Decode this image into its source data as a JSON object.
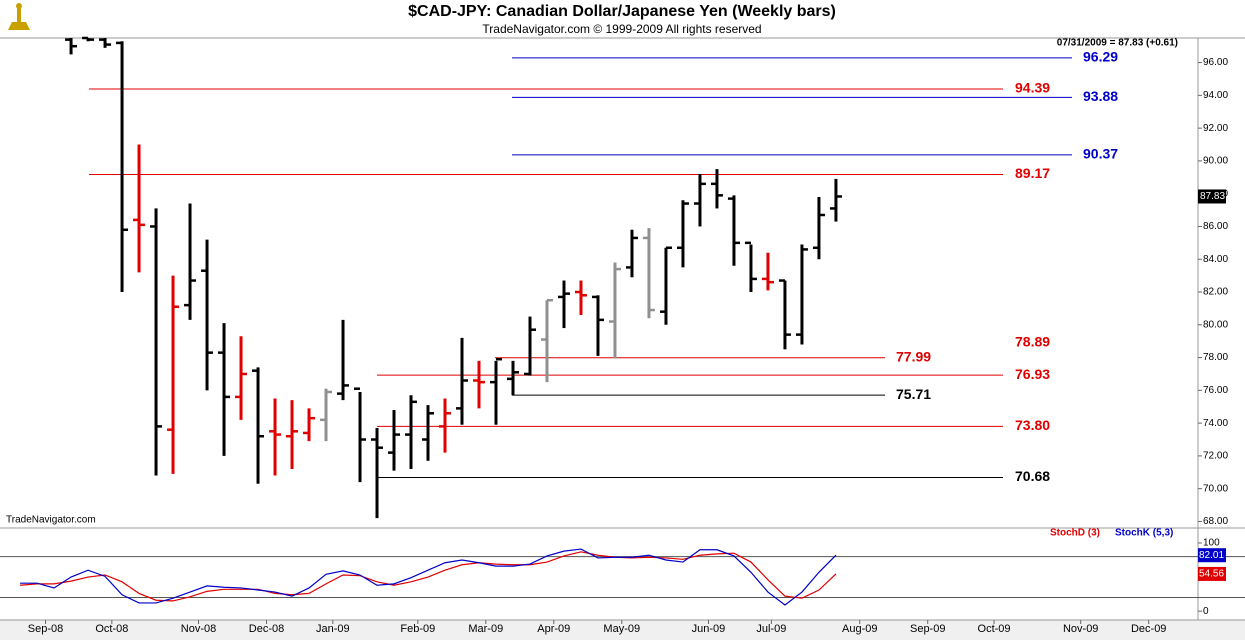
{
  "chart_data": [
    {
      "type": "ohlc",
      "title": "$CAD-JPY:  Canadian Dollar/Japanese Yen  (Weekly bars)",
      "subtitle": "TradeNavigator.com © 1999-2009 All rights reserved",
      "annotation": "07/31/2009 = 87.83 (+0.61)",
      "source": "TradeNavigator.com",
      "x": [
        0,
        1,
        2,
        3,
        4,
        5,
        6,
        7,
        8,
        9,
        10,
        11,
        12,
        13,
        14,
        15,
        16,
        17,
        18,
        19,
        20,
        21,
        22,
        23,
        24,
        25,
        26,
        27,
        28,
        29,
        30,
        31,
        32,
        33,
        34,
        35,
        36,
        37,
        38,
        39,
        40,
        41,
        42,
        43,
        44,
        45
      ],
      "open": [
        97.4,
        97.5,
        97.4,
        97.2,
        86.4,
        86.0,
        73.6,
        81.2,
        83.3,
        78.3,
        75.6,
        77.2,
        73.5,
        73.2,
        73.4,
        74.2,
        75.8,
        76.1,
        73.0,
        72.2,
        73.3,
        73.0,
        73.8,
        74.9,
        76.6,
        76.5,
        76.7,
        77.0,
        79.1,
        81.7,
        82.0,
        81.7,
        80.2,
        83.5,
        85.3,
        80.8,
        84.7,
        87.4,
        88.6,
        87.7,
        85.0,
        82.8,
        82.7,
        79.4,
        84.7,
        87.1
      ],
      "high": [
        97.5,
        97.5,
        97.5,
        97.3,
        91.0,
        87.1,
        83.0,
        87.4,
        85.2,
        80.1,
        79.3,
        77.4,
        75.5,
        75.4,
        74.9,
        76.1,
        80.3,
        75.9,
        73.7,
        74.8,
        75.7,
        75.1,
        75.5,
        79.2,
        77.8,
        77.8,
        77.8,
        80.5,
        81.5,
        82.7,
        82.7,
        81.8,
        83.8,
        85.8,
        85.9,
        84.7,
        87.6,
        89.2,
        89.5,
        87.9,
        84.9,
        84.4,
        82.7,
        84.9,
        87.8,
        88.9
      ],
      "low": [
        96.5,
        97.3,
        96.9,
        82.0,
        83.2,
        70.8,
        70.9,
        80.3,
        76.0,
        72.0,
        74.2,
        70.3,
        70.8,
        71.2,
        72.9,
        72.9,
        75.4,
        70.4,
        68.2,
        71.1,
        71.2,
        71.7,
        72.2,
        73.9,
        74.9,
        73.9,
        75.7,
        76.9,
        76.5,
        79.8,
        80.6,
        78.1,
        77.95,
        82.9,
        80.4,
        80.0,
        83.5,
        86.0,
        87.1,
        83.6,
        82.0,
        82.1,
        78.5,
        78.8,
        84.0,
        86.3
      ],
      "close": [
        97.0,
        97.4,
        97.1,
        85.8,
        86.1,
        73.8,
        81.1,
        82.7,
        78.3,
        75.6,
        77.0,
        73.2,
        73.3,
        73.5,
        74.3,
        75.9,
        76.3,
        73.0,
        72.5,
        73.3,
        75.3,
        74.6,
        74.6,
        76.6,
        76.5,
        77.9,
        77.1,
        79.7,
        81.5,
        81.9,
        81.8,
        80.3,
        83.4,
        85.3,
        80.9,
        84.7,
        87.4,
        88.6,
        87.9,
        85.0,
        82.8,
        82.6,
        79.4,
        84.6,
        86.7,
        87.83
      ],
      "colors": [
        "#000000",
        "#000000",
        "#000000",
        "#000000",
        "#e00000",
        "#000000",
        "#e00000",
        "#000000",
        "#000000",
        "#000000",
        "#e00000",
        "#000000",
        "#e00000",
        "#e00000",
        "#e00000",
        "#909090",
        "#000000",
        "#000000",
        "#000000",
        "#000000",
        "#000000",
        "#000000",
        "#e00000",
        "#000000",
        "#e00000",
        "#000000",
        "#000000",
        "#000000",
        "#909090",
        "#000000",
        "#e00000",
        "#000000",
        "#909090",
        "#000000",
        "#909090",
        "#000000",
        "#000000",
        "#000000",
        "#000000",
        "#000000",
        "#000000",
        "#e00000",
        "#000000",
        "#000000",
        "#000000",
        "#000000"
      ],
      "levels": [
        {
          "value": 96.29,
          "label": "96.29",
          "color": "#0000c8"
        },
        {
          "value": 94.39,
          "label": "94.39",
          "color": "#e00000"
        },
        {
          "value": 93.88,
          "label": "93.88",
          "color": "#0000c8"
        },
        {
          "value": 90.37,
          "label": "90.37",
          "color": "#0000c8"
        },
        {
          "value": 89.17,
          "label": "89.17",
          "color": "#e00000"
        },
        {
          "value": 78.89,
          "label": "78.89",
          "color": "#e00000"
        },
        {
          "value": 77.99,
          "label": "77.99",
          "color": "#e00000"
        },
        {
          "value": 76.93,
          "label": "76.93",
          "color": "#e00000"
        },
        {
          "value": 75.71,
          "label": "75.71",
          "color": "#000000"
        },
        {
          "value": 73.8,
          "label": "73.80",
          "color": "#e00000"
        },
        {
          "value": 70.68,
          "label": "70.68",
          "color": "#000000"
        }
      ],
      "xlim": [
        -4.18,
        66.3
      ],
      "xticks": [
        {
          "value": -1.5,
          "label": "Sep-08"
        },
        {
          "value": 2.4,
          "label": "Oct-08"
        },
        {
          "value": 7.5,
          "label": "Nov-08"
        },
        {
          "value": 11.5,
          "label": "Dec-08"
        },
        {
          "value": 15.4,
          "label": "Jan-09"
        },
        {
          "value": 20.4,
          "label": "Feb-09"
        },
        {
          "value": 24.4,
          "label": "Mar-09"
        },
        {
          "value": 28.4,
          "label": "Apr-09"
        },
        {
          "value": 32.4,
          "label": "May-09"
        },
        {
          "value": 37.5,
          "label": "Jun-09"
        },
        {
          "value": 41.2,
          "label": "Jul-09"
        },
        {
          "value": 46.4,
          "label": "Aug-09"
        },
        {
          "value": 50.4,
          "label": "Sep-09"
        },
        {
          "value": 54.3,
          "label": "Oct-09"
        },
        {
          "value": 59.4,
          "label": "Nov-09"
        },
        {
          "value": 63.4,
          "label": "Dec-09"
        }
      ],
      "ylim": [
        67.6,
        97.5
      ],
      "yticks": [
        {
          "value": 68,
          "label": "68.00"
        },
        {
          "value": 70,
          "label": "70.00"
        },
        {
          "value": 72,
          "label": "72.00"
        },
        {
          "value": 74,
          "label": "74.00"
        },
        {
          "value": 76,
          "label": "76.00"
        },
        {
          "value": 78,
          "label": "78.00"
        },
        {
          "value": 80,
          "label": "80.00"
        },
        {
          "value": 82,
          "label": "82.00"
        },
        {
          "value": 84,
          "label": "84.00"
        },
        {
          "value": 86,
          "label": "86.00"
        },
        {
          "value": 88,
          "label": "88.00"
        },
        {
          "value": 90,
          "label": "90.00"
        },
        {
          "value": 92,
          "label": "92.00"
        },
        {
          "value": 94,
          "label": "94.00"
        },
        {
          "value": 96,
          "label": "96.00"
        }
      ]
    },
    {
      "type": "line",
      "x": [
        -3,
        -2,
        -1,
        0,
        1,
        2,
        3,
        4,
        5,
        6,
        7,
        8,
        9,
        10,
        11,
        12,
        13,
        14,
        15,
        16,
        17,
        18,
        19,
        20,
        21,
        22,
        23,
        24,
        25,
        26,
        27,
        28,
        29,
        30,
        31,
        32,
        33,
        34,
        35,
        36,
        37,
        38,
        39,
        40,
        41,
        42,
        43,
        44,
        45
      ],
      "series": [
        {
          "name": "StochD (3)",
          "color": "#e00000",
          "values": [
            38,
            40,
            40,
            44,
            50,
            53,
            43,
            26,
            16,
            15,
            21,
            29,
            32,
            32,
            32,
            26,
            24,
            26,
            40,
            53,
            52,
            43,
            38,
            43,
            50,
            60,
            68,
            71,
            69,
            68,
            68,
            72,
            81,
            87,
            82,
            79,
            78,
            79,
            78,
            76,
            82,
            84,
            85,
            72,
            46,
            22,
            19,
            31,
            54.56
          ]
        },
        {
          "name": "StochK (5,3)",
          "color": "#0000c8",
          "values": [
            41,
            41,
            34,
            50,
            60,
            51,
            24,
            12,
            12,
            19,
            28,
            37,
            35,
            34,
            31,
            28,
            22,
            34,
            54,
            59,
            53,
            38,
            40,
            49,
            60,
            71,
            75,
            71,
            66,
            66,
            69,
            81,
            88,
            91,
            78,
            79,
            79,
            82,
            75,
            72,
            90,
            90,
            81,
            57,
            28,
            9,
            28,
            57,
            82.01
          ]
        }
      ],
      "xlim": [
        -4.18,
        66.3
      ],
      "ylim": [
        -13,
        119
      ],
      "yticks": [
        0,
        100
      ],
      "ref_lines": [
        20,
        80
      ]
    }
  ]
}
